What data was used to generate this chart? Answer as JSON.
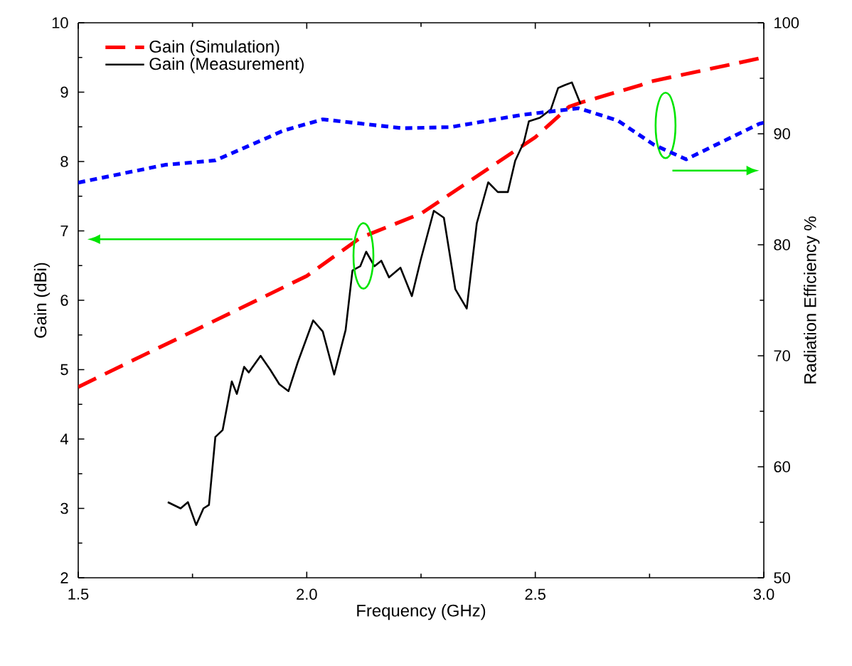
{
  "chart_data": {
    "type": "line",
    "xlabel": "Frequency (GHz)",
    "ylabel": "Gain (dBi)",
    "y2label": "Radiation Efficiency  %",
    "xlim": [
      1.5,
      3.0
    ],
    "xticks": [
      {
        "value": 1.5,
        "label": "1.5"
      },
      {
        "value": 2.0,
        "label": "2.0"
      },
      {
        "value": 2.5,
        "label": "2.5"
      },
      {
        "value": 3.0,
        "label": "3.0"
      }
    ],
    "ylim": [
      2,
      10
    ],
    "yticks": [
      2,
      3,
      4,
      5,
      6,
      7,
      8,
      9,
      10
    ],
    "y2lim": [
      50,
      100
    ],
    "y2ticks": [
      50,
      60,
      70,
      80,
      90,
      100
    ],
    "legend": "top left",
    "grid": false,
    "series": [
      {
        "name": "Gain (Simulation)",
        "color": "#ff0000",
        "line_style": "dashed",
        "x": [
          1.5,
          1.64,
          1.75,
          2.0,
          2.117,
          2.25,
          2.5,
          2.574,
          2.6,
          2.73,
          2.75,
          3.0
        ],
        "values": [
          4.75,
          5.2,
          5.55,
          6.35,
          6.9,
          7.25,
          8.35,
          8.79,
          8.85,
          9.1,
          9.15,
          9.5
        ]
      },
      {
        "name": "Gain (Measurement)",
        "color": "#000000",
        "line_style": "solid",
        "x": [
          1.696,
          1.724,
          1.74,
          1.758,
          1.774,
          1.786,
          1.8,
          1.816,
          1.836,
          1.847,
          1.863,
          1.873,
          1.899,
          1.92,
          1.94,
          1.96,
          1.98,
          2.014,
          2.035,
          2.06,
          2.085,
          2.1,
          2.117,
          2.13,
          2.148,
          2.163,
          2.18,
          2.205,
          2.23,
          2.25,
          2.278,
          2.3,
          2.325,
          2.35,
          2.372,
          2.397,
          2.418,
          2.44,
          2.456,
          2.475,
          2.486,
          2.51,
          2.534,
          2.55,
          2.564,
          2.58,
          2.599
        ],
        "values": [
          3.09,
          3.0,
          3.09,
          2.76,
          3.0,
          3.05,
          4.03,
          4.13,
          4.83,
          4.65,
          5.04,
          4.96,
          5.2,
          5.0,
          4.79,
          4.69,
          5.1,
          5.71,
          5.55,
          4.93,
          5.57,
          6.43,
          6.49,
          6.7,
          6.49,
          6.57,
          6.33,
          6.47,
          6.06,
          6.6,
          7.29,
          7.19,
          6.16,
          5.88,
          7.11,
          7.7,
          7.56,
          7.56,
          8.01,
          8.28,
          8.58,
          8.63,
          8.75,
          9.06,
          9.1,
          9.14,
          8.83
        ]
      },
      {
        "color": "#0000ff",
        "line_style": "dotted",
        "axis": "y2",
        "x": [
          1.5,
          1.69,
          1.8,
          1.95,
          2.035,
          2.21,
          2.315,
          2.47,
          2.595,
          2.68,
          2.76,
          2.83,
          2.99,
          3.0
        ],
        "values": [
          85.6,
          87.2,
          87.6,
          90.3,
          91.3,
          90.5,
          90.6,
          91.7,
          92.3,
          91.2,
          89.0,
          87.7,
          90.9,
          91.0
        ]
      }
    ]
  }
}
